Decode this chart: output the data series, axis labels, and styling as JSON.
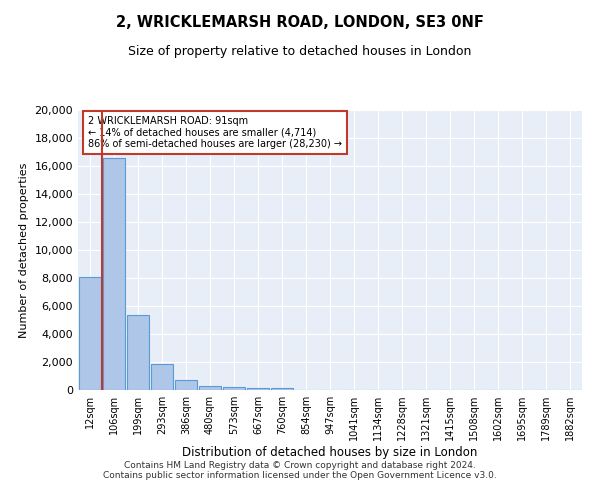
{
  "title": "2, WRICKLEMARSH ROAD, LONDON, SE3 0NF",
  "subtitle": "Size of property relative to detached houses in London",
  "xlabel": "Distribution of detached houses by size in London",
  "ylabel": "Number of detached properties",
  "categories": [
    "12sqm",
    "106sqm",
    "199sqm",
    "293sqm",
    "386sqm",
    "480sqm",
    "573sqm",
    "667sqm",
    "760sqm",
    "854sqm",
    "947sqm",
    "1041sqm",
    "1134sqm",
    "1228sqm",
    "1321sqm",
    "1415sqm",
    "1508sqm",
    "1602sqm",
    "1695sqm",
    "1789sqm",
    "1882sqm"
  ],
  "values": [
    8050,
    16600,
    5350,
    1870,
    700,
    320,
    210,
    175,
    140,
    0,
    0,
    0,
    0,
    0,
    0,
    0,
    0,
    0,
    0,
    0,
    0
  ],
  "bar_color": "#aec6e8",
  "bar_edge_color": "#5b9bd5",
  "marker_color": "#c0392b",
  "annotation_title": "2 WRICKLEMARSH ROAD: 91sqm",
  "annotation_line2": "← 14% of detached houses are smaller (4,714)",
  "annotation_line3": "86% of semi-detached houses are larger (28,230) →",
  "annotation_box_color": "#c0392b",
  "ylim": [
    0,
    20000
  ],
  "yticks": [
    0,
    2000,
    4000,
    6000,
    8000,
    10000,
    12000,
    14000,
    16000,
    18000,
    20000
  ],
  "background_color": "#e8eef7",
  "footer_line1": "Contains HM Land Registry data © Crown copyright and database right 2024.",
  "footer_line2": "Contains public sector information licensed under the Open Government Licence v3.0."
}
